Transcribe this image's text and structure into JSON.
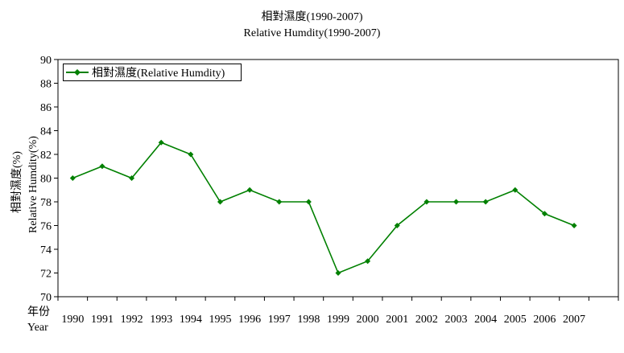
{
  "chart_data": {
    "type": "line",
    "title": "相對濕度(1990-2007)",
    "subtitle": "Relative Humdity(1990-2007)",
    "ylabel": "相對濕度(%)",
    "ylabel2": "Relative Humdity(%)",
    "xlabel": "年份",
    "xlabel2": "Year",
    "categories": [
      "1990",
      "1991",
      "1992",
      "1993",
      "1994",
      "1995",
      "1996",
      "1997",
      "1998",
      "1999",
      "2000",
      "2001",
      "2002",
      "2003",
      "2004",
      "2005",
      "2006",
      "2007"
    ],
    "series": [
      {
        "name": "相對濕度(Relative Humdity)",
        "color": "#008000",
        "values": [
          80,
          81,
          80,
          83,
          82,
          78,
          79,
          78,
          78,
          72,
          73,
          76,
          78,
          78,
          78,
          79,
          77,
          76
        ]
      }
    ],
    "ylim": [
      70,
      90
    ],
    "yticks": [
      70,
      72,
      74,
      76,
      78,
      80,
      82,
      84,
      86,
      88,
      90
    ],
    "grid": false,
    "legend": "top-left"
  }
}
